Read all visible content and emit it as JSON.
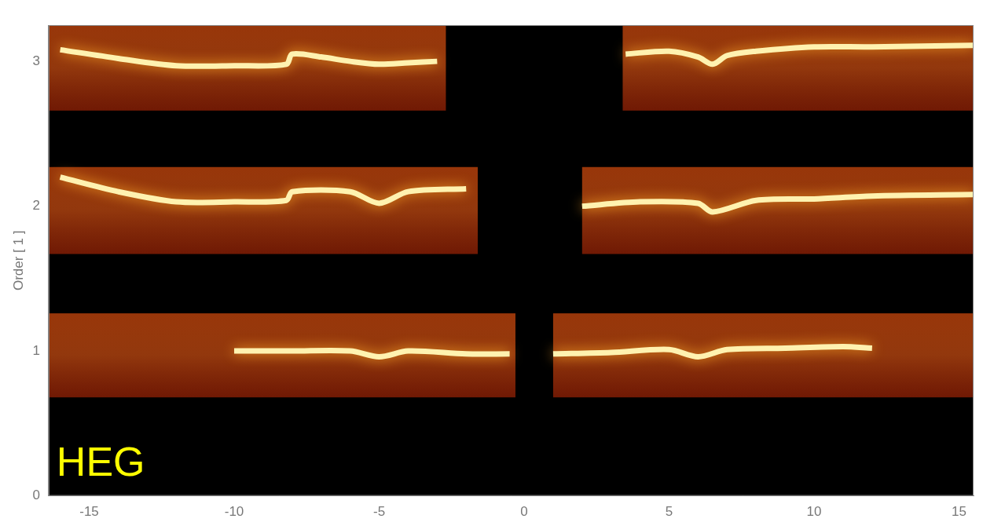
{
  "chart_data": {
    "type": "scatter",
    "annotation": "HEG",
    "y_label": "Order [ 1 ]",
    "xlim": [
      -16.4,
      15.5
    ],
    "xticks": [
      -15,
      -10,
      -5,
      0,
      5,
      10,
      15
    ],
    "ylim": [
      0,
      3.25
    ],
    "yticks": [
      0,
      1,
      2,
      3
    ],
    "grid": false,
    "bands": [
      {
        "order": 3,
        "y_range": [
          2.66,
          3.25
        ],
        "x_ranges": [
          [
            -16.4,
            -2.7
          ],
          [
            3.4,
            15.5
          ]
        ],
        "color": "#6e1804"
      },
      {
        "order": 2,
        "y_range": [
          1.67,
          2.27
        ],
        "x_ranges": [
          [
            -16.4,
            -1.6
          ],
          [
            2.0,
            15.5
          ]
        ],
        "color": "#6e1804"
      },
      {
        "order": 1,
        "y_range": [
          0.68,
          1.26
        ],
        "x_ranges": [
          [
            -16.4,
            -0.3
          ],
          [
            1.0,
            15.5
          ]
        ],
        "color": "#6e1804"
      }
    ],
    "series": [
      {
        "color": "#fff2b0",
        "x": [
          -16,
          -14,
          -12,
          -10,
          -8.2,
          -8,
          -7,
          -6,
          -5,
          -4,
          -3,
          0,
          3.5,
          5,
          6,
          6.5,
          7,
          8,
          10,
          12,
          15.5
        ],
        "values": [
          3.08,
          3.02,
          2.97,
          2.97,
          2.98,
          3.05,
          3.03,
          3.0,
          2.98,
          2.99,
          3.0,
          null,
          3.05,
          3.07,
          3.03,
          2.98,
          3.04,
          3.07,
          3.1,
          3.1,
          3.11
        ]
      },
      {
        "color": "#fff2b0",
        "x": [
          -16,
          -14,
          -12,
          -10,
          -8.2,
          -8,
          -6,
          -5,
          -4,
          -2,
          0,
          2,
          4,
          6,
          6.5,
          8,
          10,
          12,
          15.5
        ],
        "values": [
          2.2,
          2.1,
          2.03,
          2.03,
          2.04,
          2.1,
          2.1,
          2.02,
          2.1,
          2.12,
          null,
          2.0,
          2.03,
          2.02,
          1.96,
          2.04,
          2.05,
          2.07,
          2.08
        ]
      },
      {
        "color": "#fff2b0",
        "x": [
          -10,
          -8,
          -6,
          -5,
          -4,
          -2,
          -0.5,
          0.3,
          1.0,
          3,
          5,
          6,
          7,
          9,
          11,
          12
        ],
        "values": [
          1.0,
          1.0,
          1.0,
          0.96,
          1.0,
          0.98,
          0.98,
          null,
          0.98,
          0.99,
          1.01,
          0.96,
          1.01,
          1.02,
          1.03,
          1.02
        ]
      }
    ]
  }
}
